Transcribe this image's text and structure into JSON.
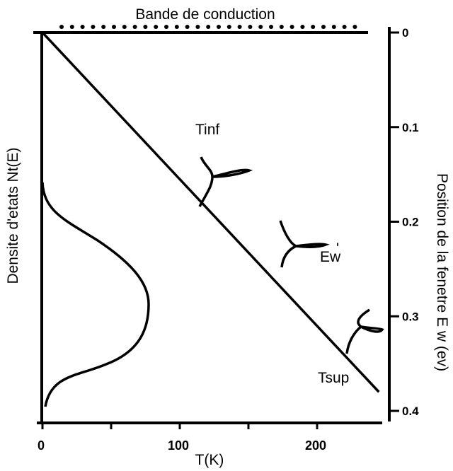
{
  "title": "Bande de conduction",
  "xaxis": {
    "label": "T(K)",
    "ticks": [
      "0",
      "100",
      "200"
    ]
  },
  "y_left": {
    "label": "Densite  d'etats  Nt(E)"
  },
  "y_right": {
    "label": "Position de  la  fenetre  E w  (ev)",
    "ticks": [
      "0",
      "0.1",
      "0.2",
      "0.3",
      "0.4"
    ]
  },
  "annotations": {
    "tinf": "Tinf",
    "ew": "Ew",
    "ew_mark": "'",
    "tsup": "Tsup"
  },
  "colors": {
    "ink": "#000000",
    "background": "#ffffff"
  },
  "chart_data": {
    "type": "line",
    "x_range": [
      0,
      250
    ],
    "y_range": [
      0,
      0.4
    ],
    "y_inverted": true,
    "x_tick_values": [
      0,
      100,
      200
    ],
    "y_tick_values": [
      0,
      0.1,
      0.2,
      0.3,
      0.4
    ],
    "series": [
      {
        "x": [
          0,
          245
        ],
        "y": [
          0,
          0.38
        ]
      }
    ]
  }
}
